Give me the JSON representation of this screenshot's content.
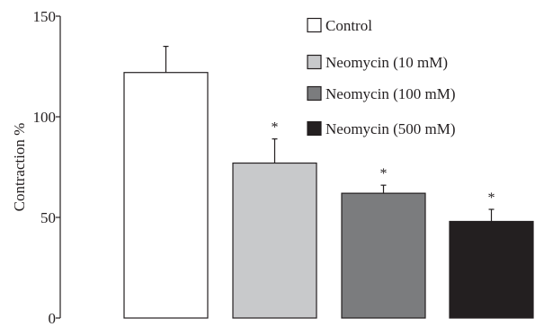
{
  "chart_data": {
    "type": "bar",
    "title": "",
    "xlabel": "",
    "ylabel": "Contraction %",
    "ylim": [
      0,
      150
    ],
    "yticks": [
      "0",
      "50",
      "100",
      "150"
    ],
    "categories": [
      "Control",
      "Neomycin (10 mM)",
      "Neomycin (100 mM)",
      "Neomycin (500 mM)"
    ],
    "values": [
      122,
      77,
      62,
      48
    ],
    "errors": [
      13,
      12,
      4,
      6
    ],
    "significance": [
      "",
      "*",
      "*",
      "*"
    ],
    "colors": [
      "#ffffff",
      "#c8c9cb",
      "#7b7c7e",
      "#231f20"
    ],
    "grid": false,
    "legend_position": "top-right"
  }
}
